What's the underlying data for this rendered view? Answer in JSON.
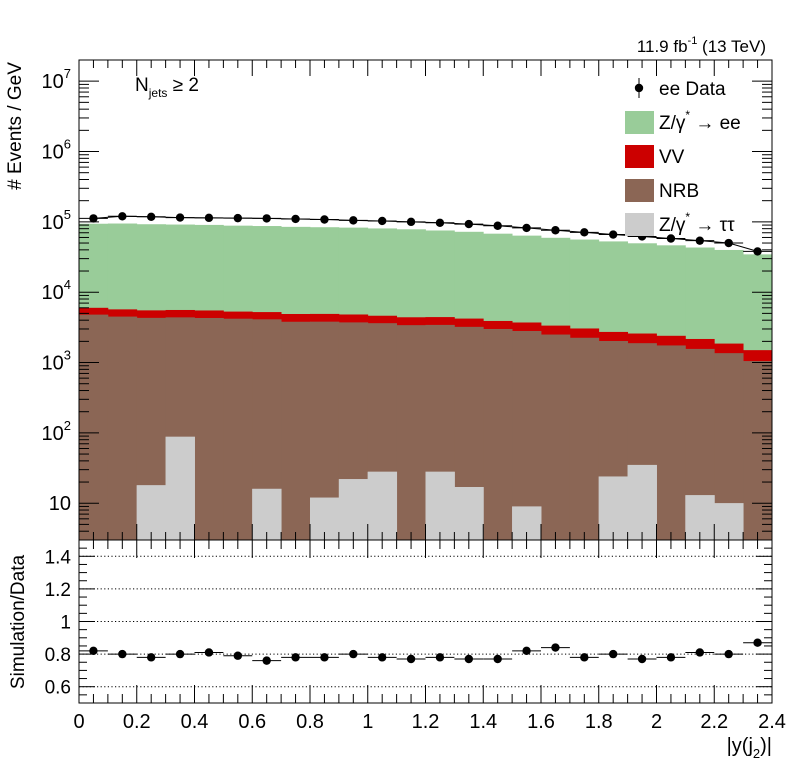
{
  "chart_data": [
    {
      "type": "bar",
      "stacked": true,
      "log_y": true,
      "title": "",
      "lumi_label": {
        "text": "11.9 fb",
        "sup": "-1",
        "suffix": " (13 TeV)"
      },
      "annotation": {
        "main": "N",
        "sub": "jets",
        "rest": " ≥ 2"
      },
      "ylabel": "# Events / GeV",
      "xlim": [
        0,
        2.4
      ],
      "ylim": [
        3,
        20000000
      ],
      "bin_edges": [
        0,
        0.1,
        0.2,
        0.3,
        0.4,
        0.5,
        0.6,
        0.7,
        0.8,
        0.9,
        1.0,
        1.1,
        1.2,
        1.3,
        1.4,
        1.5,
        1.6,
        1.7,
        1.8,
        1.9,
        2.0,
        2.1,
        2.2,
        2.3,
        2.4
      ],
      "y_ticks": [
        {
          "value": 10,
          "base": "10",
          "exp": ""
        },
        {
          "value": 100,
          "base": "10",
          "exp": "2"
        },
        {
          "value": 1000,
          "base": "10",
          "exp": "3"
        },
        {
          "value": 10000,
          "base": "10",
          "exp": "4"
        },
        {
          "value": 100000,
          "base": "10",
          "exp": "5"
        },
        {
          "value": 1000000,
          "base": "10",
          "exp": "6"
        },
        {
          "value": 10000000,
          "base": "10",
          "exp": "7"
        }
      ],
      "legend": [
        {
          "label": "ee Data",
          "kind": "marker",
          "color": "#000000"
        },
        {
          "label": "Z/γ",
          "sup": "*",
          "rest": " → ee",
          "kind": "box",
          "color": "#99cc99"
        },
        {
          "label": "VV",
          "kind": "box",
          "color": "#cc0000"
        },
        {
          "label": "NRB",
          "kind": "box",
          "color": "#8b6655"
        },
        {
          "label": "Z/γ",
          "sup": "*",
          "rest": " → ττ",
          "kind": "box",
          "color": "#cccccc"
        }
      ],
      "series": [
        {
          "name": "Z/γ* → ττ",
          "color": "#cccccc",
          "values": [
            0,
            0,
            18,
            88,
            0,
            0,
            16,
            0,
            12,
            22,
            28,
            0,
            28,
            17,
            0,
            9,
            0,
            0,
            24,
            35,
            0,
            13,
            10,
            0
          ]
        },
        {
          "name": "NRB",
          "color": "#8b6655",
          "values": [
            4800,
            4500,
            4300,
            4300,
            4300,
            4200,
            4100,
            3800,
            3800,
            3700,
            3600,
            3400,
            3400,
            3200,
            3000,
            2800,
            2500,
            2250,
            2000,
            1850,
            1750,
            1550,
            1350,
            1050
          ]
        },
        {
          "name": "VV",
          "color": "#cc0000",
          "values": [
            1200,
            1200,
            1200,
            1200,
            1200,
            1100,
            1100,
            1100,
            1100,
            1100,
            1000,
            1000,
            1000,
            1000,
            900,
            900,
            850,
            800,
            700,
            700,
            650,
            600,
            500,
            450
          ]
        },
        {
          "name": "Z/γ* → ee",
          "color": "#99cc99",
          "values": [
            88000,
            89000,
            87000,
            86000,
            85000,
            83000,
            82000,
            80000,
            79000,
            78000,
            76000,
            74000,
            71000,
            68000,
            64000,
            60000,
            56000,
            53000,
            50000,
            47000,
            44000,
            41000,
            38000,
            33000
          ]
        },
        {
          "name": "ee Data",
          "color": "#000000",
          "kind": "points",
          "values": [
            112000,
            120000,
            118000,
            115000,
            114000,
            113000,
            112000,
            110000,
            108000,
            105000,
            103000,
            100000,
            97000,
            93000,
            88000,
            82000,
            76000,
            71000,
            66000,
            62000,
            58000,
            54000,
            50000,
            38000
          ]
        }
      ]
    },
    {
      "type": "scatter",
      "ylabel": "Simulation/Data",
      "xlabel": "|y(j",
      "xlabel_sub": "2",
      "xlabel_end": ")|",
      "xlim": [
        0,
        2.4
      ],
      "ylim": [
        0.5,
        1.5
      ],
      "x_ticks": [
        {
          "value": 0,
          "label": "0"
        },
        {
          "value": 0.2,
          "label": "0.2"
        },
        {
          "value": 0.4,
          "label": "0.4"
        },
        {
          "value": 0.6,
          "label": "0.6"
        },
        {
          "value": 0.8,
          "label": "0.8"
        },
        {
          "value": 1.0,
          "label": "1"
        },
        {
          "value": 1.2,
          "label": "1.2"
        },
        {
          "value": 1.4,
          "label": "1.4"
        },
        {
          "value": 1.6,
          "label": "1.6"
        },
        {
          "value": 1.8,
          "label": "1.8"
        },
        {
          "value": 2.0,
          "label": "2"
        },
        {
          "value": 2.2,
          "label": "2.2"
        },
        {
          "value": 2.4,
          "label": "2.4"
        }
      ],
      "y_ticks": [
        {
          "value": 0.6,
          "label": "0.6"
        },
        {
          "value": 0.8,
          "label": "0.8"
        },
        {
          "value": 1.0,
          "label": "1"
        },
        {
          "value": 1.2,
          "label": "1.2"
        },
        {
          "value": 1.4,
          "label": "1.4"
        }
      ],
      "gridlines": [
        0.6,
        0.8,
        1.0,
        1.2,
        1.4
      ],
      "x": [
        0.05,
        0.15,
        0.25,
        0.35,
        0.45,
        0.55,
        0.65,
        0.75,
        0.85,
        0.95,
        1.05,
        1.15,
        1.25,
        1.35,
        1.45,
        1.55,
        1.65,
        1.75,
        1.85,
        1.95,
        2.05,
        2.15,
        2.25,
        2.35
      ],
      "values": [
        0.82,
        0.8,
        0.78,
        0.8,
        0.81,
        0.79,
        0.76,
        0.78,
        0.78,
        0.8,
        0.78,
        0.77,
        0.78,
        0.77,
        0.77,
        0.82,
        0.84,
        0.78,
        0.8,
        0.77,
        0.78,
        0.81,
        0.8,
        0.87
      ]
    }
  ]
}
